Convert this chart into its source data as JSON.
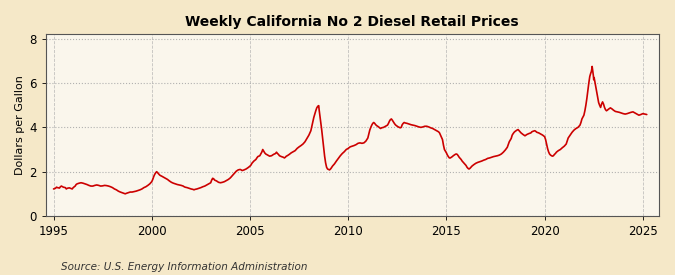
{
  "title": "Weekly California No 2 Diesel Retail Prices",
  "ylabel": "Dollars per Gallon",
  "source_text": "Source: U.S. Energy Information Administration",
  "line_color": "#cc0000",
  "figure_bg": "#f5e8c8",
  "plot_bg": "#faf6ec",
  "grid_color": "#aaaaaa",
  "yticks": [
    0,
    2,
    4,
    6,
    8
  ],
  "xticks": [
    1995,
    2000,
    2005,
    2010,
    2015,
    2020,
    2025
  ],
  "ylim": [
    0,
    8.2
  ],
  "xlim": [
    1994.6,
    2025.8
  ],
  "series": [
    [
      1995.0,
      1.22
    ],
    [
      1995.1,
      1.25
    ],
    [
      1995.15,
      1.3
    ],
    [
      1995.2,
      1.28
    ],
    [
      1995.3,
      1.26
    ],
    [
      1995.35,
      1.32
    ],
    [
      1995.4,
      1.35
    ],
    [
      1995.5,
      1.3
    ],
    [
      1995.6,
      1.28
    ],
    [
      1995.65,
      1.22
    ],
    [
      1995.7,
      1.25
    ],
    [
      1995.8,
      1.27
    ],
    [
      1995.9,
      1.24
    ],
    [
      1995.95,
      1.22
    ],
    [
      1996.0,
      1.28
    ],
    [
      1996.1,
      1.35
    ],
    [
      1996.15,
      1.42
    ],
    [
      1996.2,
      1.45
    ],
    [
      1996.3,
      1.48
    ],
    [
      1996.4,
      1.5
    ],
    [
      1996.5,
      1.48
    ],
    [
      1996.6,
      1.45
    ],
    [
      1996.7,
      1.42
    ],
    [
      1996.8,
      1.38
    ],
    [
      1996.9,
      1.35
    ],
    [
      1997.0,
      1.35
    ],
    [
      1997.1,
      1.38
    ],
    [
      1997.2,
      1.4
    ],
    [
      1997.3,
      1.38
    ],
    [
      1997.4,
      1.35
    ],
    [
      1997.5,
      1.36
    ],
    [
      1997.6,
      1.38
    ],
    [
      1997.7,
      1.37
    ],
    [
      1997.8,
      1.35
    ],
    [
      1997.9,
      1.32
    ],
    [
      1998.0,
      1.28
    ],
    [
      1998.1,
      1.22
    ],
    [
      1998.2,
      1.18
    ],
    [
      1998.3,
      1.12
    ],
    [
      1998.4,
      1.08
    ],
    [
      1998.5,
      1.05
    ],
    [
      1998.6,
      1.02
    ],
    [
      1998.65,
      1.0
    ],
    [
      1998.7,
      1.02
    ],
    [
      1998.8,
      1.05
    ],
    [
      1998.9,
      1.08
    ],
    [
      1999.0,
      1.08
    ],
    [
      1999.1,
      1.1
    ],
    [
      1999.2,
      1.12
    ],
    [
      1999.3,
      1.15
    ],
    [
      1999.4,
      1.18
    ],
    [
      1999.5,
      1.22
    ],
    [
      1999.6,
      1.28
    ],
    [
      1999.7,
      1.32
    ],
    [
      1999.8,
      1.38
    ],
    [
      1999.9,
      1.45
    ],
    [
      2000.0,
      1.55
    ],
    [
      2000.05,
      1.65
    ],
    [
      2000.1,
      1.78
    ],
    [
      2000.15,
      1.88
    ],
    [
      2000.2,
      1.95
    ],
    [
      2000.25,
      2.0
    ],
    [
      2000.3,
      1.95
    ],
    [
      2000.35,
      1.9
    ],
    [
      2000.4,
      1.85
    ],
    [
      2000.45,
      1.82
    ],
    [
      2000.5,
      1.8
    ],
    [
      2000.6,
      1.75
    ],
    [
      2000.7,
      1.7
    ],
    [
      2000.8,
      1.65
    ],
    [
      2000.9,
      1.58
    ],
    [
      2001.0,
      1.52
    ],
    [
      2001.1,
      1.48
    ],
    [
      2001.2,
      1.45
    ],
    [
      2001.3,
      1.42
    ],
    [
      2001.4,
      1.4
    ],
    [
      2001.5,
      1.38
    ],
    [
      2001.6,
      1.35
    ],
    [
      2001.65,
      1.32
    ],
    [
      2001.7,
      1.3
    ],
    [
      2001.8,
      1.28
    ],
    [
      2001.9,
      1.25
    ],
    [
      2002.0,
      1.22
    ],
    [
      2002.1,
      1.2
    ],
    [
      2002.15,
      1.18
    ],
    [
      2002.2,
      1.2
    ],
    [
      2002.3,
      1.22
    ],
    [
      2002.4,
      1.25
    ],
    [
      2002.5,
      1.28
    ],
    [
      2002.6,
      1.32
    ],
    [
      2002.7,
      1.35
    ],
    [
      2002.8,
      1.4
    ],
    [
      2002.9,
      1.45
    ],
    [
      2003.0,
      1.5
    ],
    [
      2003.05,
      1.62
    ],
    [
      2003.1,
      1.7
    ],
    [
      2003.15,
      1.68
    ],
    [
      2003.2,
      1.62
    ],
    [
      2003.3,
      1.58
    ],
    [
      2003.35,
      1.55
    ],
    [
      2003.4,
      1.52
    ],
    [
      2003.5,
      1.5
    ],
    [
      2003.6,
      1.52
    ],
    [
      2003.7,
      1.55
    ],
    [
      2003.8,
      1.6
    ],
    [
      2003.9,
      1.65
    ],
    [
      2004.0,
      1.72
    ],
    [
      2004.1,
      1.82
    ],
    [
      2004.2,
      1.92
    ],
    [
      2004.3,
      2.02
    ],
    [
      2004.4,
      2.08
    ],
    [
      2004.5,
      2.1
    ],
    [
      2004.55,
      2.08
    ],
    [
      2004.6,
      2.05
    ],
    [
      2004.7,
      2.08
    ],
    [
      2004.8,
      2.12
    ],
    [
      2004.9,
      2.18
    ],
    [
      2005.0,
      2.25
    ],
    [
      2005.05,
      2.3
    ],
    [
      2005.1,
      2.38
    ],
    [
      2005.2,
      2.48
    ],
    [
      2005.3,
      2.55
    ],
    [
      2005.35,
      2.62
    ],
    [
      2005.4,
      2.68
    ],
    [
      2005.5,
      2.72
    ],
    [
      2005.55,
      2.8
    ],
    [
      2005.6,
      2.88
    ],
    [
      2005.65,
      3.0
    ],
    [
      2005.7,
      2.92
    ],
    [
      2005.75,
      2.85
    ],
    [
      2005.8,
      2.8
    ],
    [
      2005.9,
      2.75
    ],
    [
      2006.0,
      2.7
    ],
    [
      2006.1,
      2.72
    ],
    [
      2006.2,
      2.78
    ],
    [
      2006.3,
      2.82
    ],
    [
      2006.35,
      2.88
    ],
    [
      2006.4,
      2.82
    ],
    [
      2006.45,
      2.78
    ],
    [
      2006.5,
      2.72
    ],
    [
      2006.6,
      2.68
    ],
    [
      2006.7,
      2.65
    ],
    [
      2006.75,
      2.62
    ],
    [
      2006.8,
      2.65
    ],
    [
      2006.85,
      2.7
    ],
    [
      2006.9,
      2.72
    ],
    [
      2007.0,
      2.78
    ],
    [
      2007.1,
      2.85
    ],
    [
      2007.2,
      2.9
    ],
    [
      2007.3,
      2.95
    ],
    [
      2007.35,
      3.0
    ],
    [
      2007.4,
      3.05
    ],
    [
      2007.5,
      3.12
    ],
    [
      2007.6,
      3.18
    ],
    [
      2007.7,
      3.25
    ],
    [
      2007.8,
      3.35
    ],
    [
      2007.9,
      3.5
    ],
    [
      2008.0,
      3.65
    ],
    [
      2008.1,
      3.85
    ],
    [
      2008.15,
      4.05
    ],
    [
      2008.2,
      4.25
    ],
    [
      2008.25,
      4.45
    ],
    [
      2008.3,
      4.6
    ],
    [
      2008.35,
      4.75
    ],
    [
      2008.4,
      4.88
    ],
    [
      2008.45,
      4.95
    ],
    [
      2008.5,
      4.98
    ],
    [
      2008.52,
      4.8
    ],
    [
      2008.55,
      4.6
    ],
    [
      2008.6,
      4.3
    ],
    [
      2008.65,
      3.9
    ],
    [
      2008.7,
      3.5
    ],
    [
      2008.75,
      3.1
    ],
    [
      2008.8,
      2.7
    ],
    [
      2008.85,
      2.4
    ],
    [
      2008.9,
      2.2
    ],
    [
      2008.95,
      2.12
    ],
    [
      2009.0,
      2.1
    ],
    [
      2009.05,
      2.08
    ],
    [
      2009.1,
      2.12
    ],
    [
      2009.15,
      2.18
    ],
    [
      2009.2,
      2.25
    ],
    [
      2009.3,
      2.35
    ],
    [
      2009.4,
      2.48
    ],
    [
      2009.5,
      2.6
    ],
    [
      2009.6,
      2.72
    ],
    [
      2009.7,
      2.82
    ],
    [
      2009.8,
      2.9
    ],
    [
      2009.9,
      3.0
    ],
    [
      2010.0,
      3.05
    ],
    [
      2010.1,
      3.12
    ],
    [
      2010.2,
      3.15
    ],
    [
      2010.3,
      3.18
    ],
    [
      2010.4,
      3.22
    ],
    [
      2010.5,
      3.28
    ],
    [
      2010.6,
      3.3
    ],
    [
      2010.7,
      3.28
    ],
    [
      2010.8,
      3.3
    ],
    [
      2010.9,
      3.38
    ],
    [
      2011.0,
      3.52
    ],
    [
      2011.05,
      3.7
    ],
    [
      2011.1,
      3.88
    ],
    [
      2011.15,
      4.0
    ],
    [
      2011.2,
      4.1
    ],
    [
      2011.25,
      4.18
    ],
    [
      2011.3,
      4.22
    ],
    [
      2011.35,
      4.18
    ],
    [
      2011.4,
      4.12
    ],
    [
      2011.45,
      4.08
    ],
    [
      2011.5,
      4.05
    ],
    [
      2011.55,
      4.02
    ],
    [
      2011.6,
      3.98
    ],
    [
      2011.65,
      3.95
    ],
    [
      2011.7,
      3.98
    ],
    [
      2011.8,
      4.0
    ],
    [
      2011.9,
      4.05
    ],
    [
      2012.0,
      4.1
    ],
    [
      2012.05,
      4.18
    ],
    [
      2012.1,
      4.28
    ],
    [
      2012.15,
      4.35
    ],
    [
      2012.2,
      4.38
    ],
    [
      2012.25,
      4.32
    ],
    [
      2012.3,
      4.25
    ],
    [
      2012.35,
      4.18
    ],
    [
      2012.4,
      4.12
    ],
    [
      2012.45,
      4.08
    ],
    [
      2012.5,
      4.05
    ],
    [
      2012.55,
      4.02
    ],
    [
      2012.6,
      4.0
    ],
    [
      2012.65,
      3.98
    ],
    [
      2012.7,
      4.0
    ],
    [
      2012.75,
      4.12
    ],
    [
      2012.8,
      4.18
    ],
    [
      2012.85,
      4.22
    ],
    [
      2012.9,
      4.2
    ],
    [
      2013.0,
      4.18
    ],
    [
      2013.1,
      4.15
    ],
    [
      2013.2,
      4.12
    ],
    [
      2013.3,
      4.1
    ],
    [
      2013.4,
      4.08
    ],
    [
      2013.5,
      4.05
    ],
    [
      2013.6,
      4.02
    ],
    [
      2013.7,
      4.0
    ],
    [
      2013.8,
      4.02
    ],
    [
      2013.9,
      4.05
    ],
    [
      2014.0,
      4.05
    ],
    [
      2014.1,
      4.02
    ],
    [
      2014.2,
      3.98
    ],
    [
      2014.3,
      3.95
    ],
    [
      2014.4,
      3.9
    ],
    [
      2014.5,
      3.85
    ],
    [
      2014.6,
      3.8
    ],
    [
      2014.65,
      3.75
    ],
    [
      2014.7,
      3.65
    ],
    [
      2014.8,
      3.45
    ],
    [
      2014.85,
      3.2
    ],
    [
      2014.9,
      3.0
    ],
    [
      2015.0,
      2.85
    ],
    [
      2015.05,
      2.75
    ],
    [
      2015.1,
      2.68
    ],
    [
      2015.15,
      2.62
    ],
    [
      2015.2,
      2.62
    ],
    [
      2015.25,
      2.65
    ],
    [
      2015.3,
      2.68
    ],
    [
      2015.35,
      2.72
    ],
    [
      2015.4,
      2.75
    ],
    [
      2015.45,
      2.78
    ],
    [
      2015.5,
      2.8
    ],
    [
      2015.55,
      2.78
    ],
    [
      2015.6,
      2.72
    ],
    [
      2015.65,
      2.65
    ],
    [
      2015.7,
      2.6
    ],
    [
      2015.75,
      2.55
    ],
    [
      2015.8,
      2.48
    ],
    [
      2015.9,
      2.38
    ],
    [
      2016.0,
      2.28
    ],
    [
      2016.05,
      2.2
    ],
    [
      2016.1,
      2.15
    ],
    [
      2016.15,
      2.12
    ],
    [
      2016.2,
      2.15
    ],
    [
      2016.25,
      2.2
    ],
    [
      2016.3,
      2.25
    ],
    [
      2016.4,
      2.32
    ],
    [
      2016.5,
      2.38
    ],
    [
      2016.6,
      2.42
    ],
    [
      2016.7,
      2.45
    ],
    [
      2016.8,
      2.48
    ],
    [
      2016.9,
      2.52
    ],
    [
      2017.0,
      2.55
    ],
    [
      2017.1,
      2.6
    ],
    [
      2017.2,
      2.62
    ],
    [
      2017.3,
      2.65
    ],
    [
      2017.4,
      2.68
    ],
    [
      2017.5,
      2.7
    ],
    [
      2017.6,
      2.72
    ],
    [
      2017.7,
      2.75
    ],
    [
      2017.8,
      2.8
    ],
    [
      2017.9,
      2.88
    ],
    [
      2018.0,
      2.98
    ],
    [
      2018.1,
      3.1
    ],
    [
      2018.15,
      3.22
    ],
    [
      2018.2,
      3.35
    ],
    [
      2018.3,
      3.5
    ],
    [
      2018.35,
      3.65
    ],
    [
      2018.4,
      3.72
    ],
    [
      2018.45,
      3.78
    ],
    [
      2018.5,
      3.82
    ],
    [
      2018.55,
      3.85
    ],
    [
      2018.6,
      3.88
    ],
    [
      2018.65,
      3.9
    ],
    [
      2018.7,
      3.85
    ],
    [
      2018.75,
      3.8
    ],
    [
      2018.8,
      3.75
    ],
    [
      2018.9,
      3.68
    ],
    [
      2019.0,
      3.62
    ],
    [
      2019.1,
      3.68
    ],
    [
      2019.2,
      3.72
    ],
    [
      2019.3,
      3.75
    ],
    [
      2019.35,
      3.8
    ],
    [
      2019.4,
      3.82
    ],
    [
      2019.5,
      3.85
    ],
    [
      2019.55,
      3.82
    ],
    [
      2019.6,
      3.78
    ],
    [
      2019.7,
      3.75
    ],
    [
      2019.8,
      3.7
    ],
    [
      2019.9,
      3.65
    ],
    [
      2020.0,
      3.58
    ],
    [
      2020.05,
      3.45
    ],
    [
      2020.1,
      3.25
    ],
    [
      2020.15,
      3.05
    ],
    [
      2020.2,
      2.9
    ],
    [
      2020.25,
      2.8
    ],
    [
      2020.3,
      2.75
    ],
    [
      2020.35,
      2.72
    ],
    [
      2020.4,
      2.7
    ],
    [
      2020.45,
      2.72
    ],
    [
      2020.5,
      2.78
    ],
    [
      2020.55,
      2.82
    ],
    [
      2020.6,
      2.88
    ],
    [
      2020.7,
      2.95
    ],
    [
      2020.8,
      3.0
    ],
    [
      2020.9,
      3.08
    ],
    [
      2021.0,
      3.15
    ],
    [
      2021.1,
      3.25
    ],
    [
      2021.15,
      3.38
    ],
    [
      2021.2,
      3.52
    ],
    [
      2021.3,
      3.65
    ],
    [
      2021.4,
      3.78
    ],
    [
      2021.5,
      3.88
    ],
    [
      2021.6,
      3.95
    ],
    [
      2021.7,
      4.0
    ],
    [
      2021.8,
      4.1
    ],
    [
      2021.85,
      4.22
    ],
    [
      2021.9,
      4.38
    ],
    [
      2022.0,
      4.55
    ],
    [
      2022.05,
      4.75
    ],
    [
      2022.1,
      5.0
    ],
    [
      2022.15,
      5.3
    ],
    [
      2022.2,
      5.65
    ],
    [
      2022.25,
      6.0
    ],
    [
      2022.3,
      6.3
    ],
    [
      2022.35,
      6.45
    ],
    [
      2022.38,
      6.52
    ],
    [
      2022.4,
      6.62
    ],
    [
      2022.42,
      6.75
    ],
    [
      2022.45,
      6.55
    ],
    [
      2022.48,
      6.35
    ],
    [
      2022.5,
      6.15
    ],
    [
      2022.52,
      6.25
    ],
    [
      2022.55,
      6.1
    ],
    [
      2022.6,
      5.85
    ],
    [
      2022.65,
      5.6
    ],
    [
      2022.7,
      5.35
    ],
    [
      2022.75,
      5.12
    ],
    [
      2022.8,
      5.0
    ],
    [
      2022.85,
      4.9
    ],
    [
      2022.9,
      5.05
    ],
    [
      2022.95,
      5.15
    ],
    [
      2023.0,
      5.05
    ],
    [
      2023.05,
      4.9
    ],
    [
      2023.1,
      4.8
    ],
    [
      2023.15,
      4.75
    ],
    [
      2023.2,
      4.78
    ],
    [
      2023.25,
      4.82
    ],
    [
      2023.3,
      4.85
    ],
    [
      2023.35,
      4.88
    ],
    [
      2023.4,
      4.85
    ],
    [
      2023.45,
      4.82
    ],
    [
      2023.5,
      4.78
    ],
    [
      2023.55,
      4.75
    ],
    [
      2023.6,
      4.72
    ],
    [
      2023.7,
      4.7
    ],
    [
      2023.8,
      4.68
    ],
    [
      2023.9,
      4.65
    ],
    [
      2024.0,
      4.62
    ],
    [
      2024.1,
      4.6
    ],
    [
      2024.2,
      4.62
    ],
    [
      2024.3,
      4.65
    ],
    [
      2024.4,
      4.68
    ],
    [
      2024.5,
      4.7
    ],
    [
      2024.6,
      4.65
    ],
    [
      2024.7,
      4.6
    ],
    [
      2024.8,
      4.55
    ],
    [
      2024.9,
      4.58
    ],
    [
      2025.0,
      4.62
    ],
    [
      2025.1,
      4.6
    ],
    [
      2025.2,
      4.58
    ]
  ]
}
